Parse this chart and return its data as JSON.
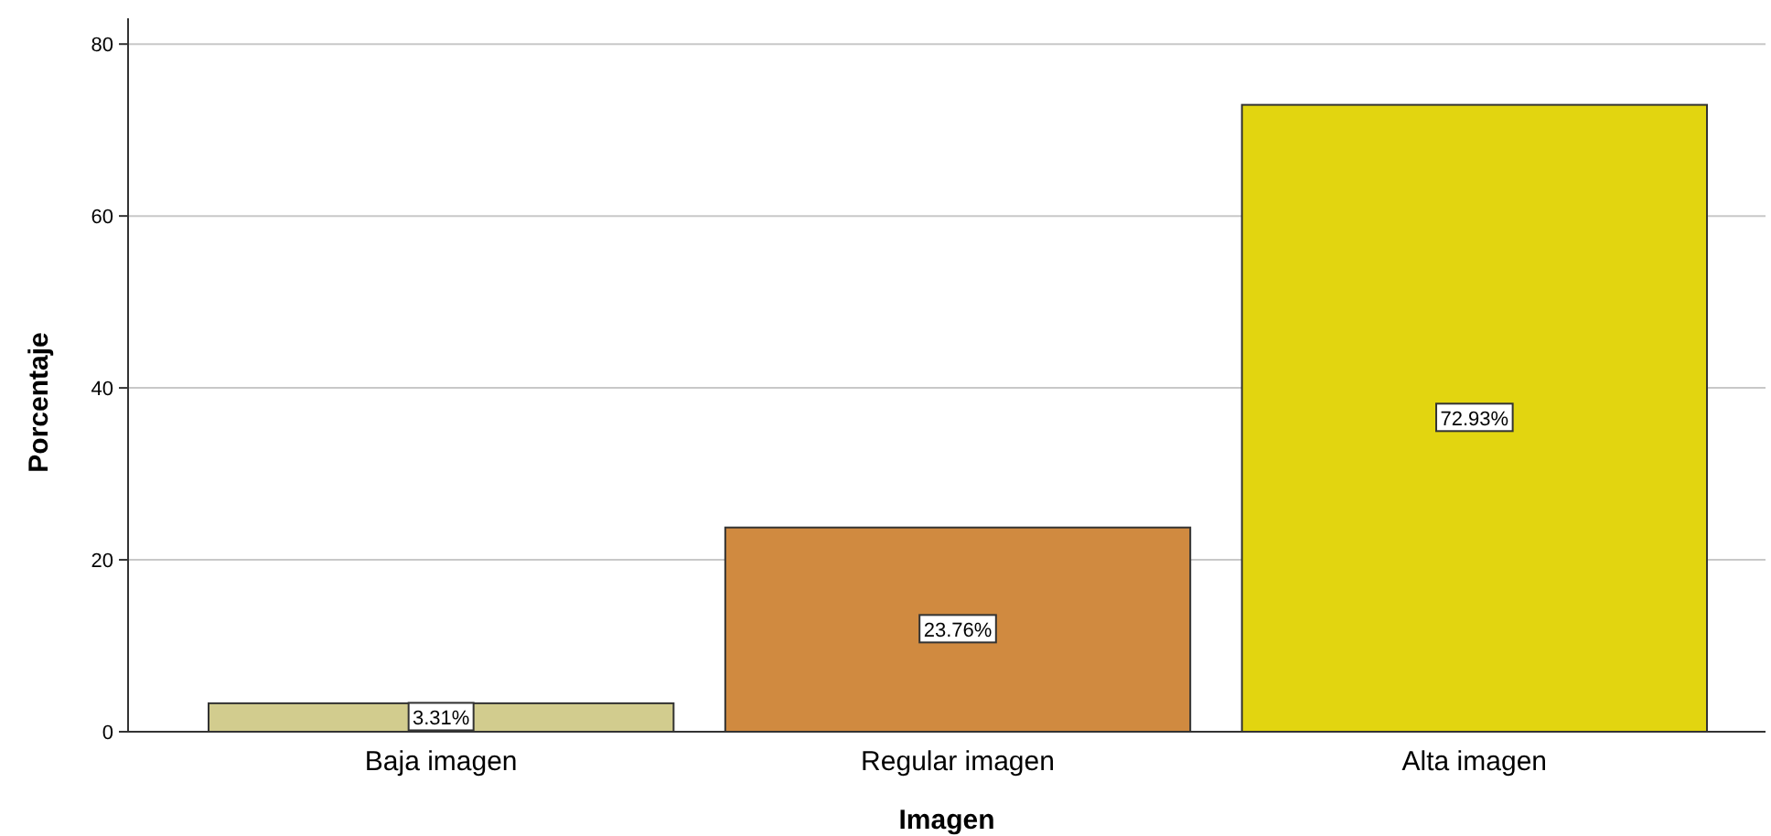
{
  "chart_data": {
    "type": "bar",
    "xlabel": "Imagen",
    "ylabel": "Porcentaje",
    "categories": [
      "Baja imagen",
      "Regular imagen",
      "Alta imagen"
    ],
    "values": [
      3.31,
      23.76,
      72.93
    ],
    "colors": [
      "#d2cc8e",
      "#d08a40",
      "#e2d510"
    ],
    "value_labels": [
      "3.31%",
      "23.76%",
      "72.93%"
    ],
    "ylim": [
      0,
      83
    ],
    "yticks": [
      0,
      20,
      40,
      60,
      80
    ],
    "grid": "y"
  }
}
